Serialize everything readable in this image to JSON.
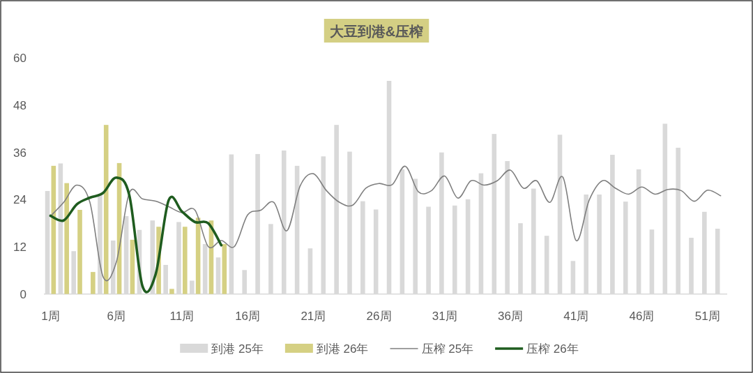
{
  "chart_data": {
    "type": "bar",
    "title": "大豆到港&压榨",
    "categories": [
      "1周",
      null,
      null,
      null,
      null,
      "6周",
      null,
      null,
      null,
      null,
      "11周",
      null,
      null,
      null,
      null,
      "16周",
      null,
      null,
      null,
      null,
      "21周",
      null,
      null,
      null,
      null,
      "26周",
      null,
      null,
      null,
      null,
      "31周",
      null,
      null,
      null,
      null,
      "36周",
      null,
      null,
      null,
      null,
      "41周",
      null,
      null,
      null,
      null,
      "46周",
      null,
      null,
      null,
      null,
      "51周",
      null
    ],
    "series": [
      {
        "name": "到港 25年",
        "color": "#d9d9d9",
        "values": [
          26.2,
          33.2,
          10.9,
          null,
          25.4,
          13.6,
          19.8,
          16.3,
          18.7,
          7.4,
          18.3,
          3.4,
          12.7,
          9.3,
          35.5,
          6.1,
          35.6,
          17.8,
          36.5,
          32.6,
          11.6,
          35.0,
          43.0,
          36.2,
          23.6,
          21.5,
          54.2,
          31.7,
          29.3,
          22.2,
          36.0,
          22.5,
          24.1,
          30.7,
          40.7,
          33.8,
          18.0,
          26.8,
          14.8,
          40.5,
          8.4,
          25.3,
          25.3,
          35.4,
          23.5,
          31.7,
          16.4,
          43.3,
          37.2,
          14.3,
          20.9,
          16.6
        ]
      },
      {
        "name": "到港 26年",
        "color": "#d5d083",
        "values": [
          32.6,
          28.2,
          21.4,
          5.6,
          43.0,
          33.3,
          13.8,
          null,
          17.1,
          1.3,
          17.1,
          19.4,
          18.7,
          12.7,
          null,
          null,
          null,
          null,
          null,
          null,
          null,
          null,
          null,
          null,
          null,
          null,
          null,
          null,
          null,
          null,
          null,
          null,
          null,
          null,
          null,
          null,
          null,
          null,
          null,
          null,
          null,
          null,
          null,
          null,
          null,
          null,
          null,
          null,
          null,
          null,
          null,
          null
        ]
      },
      {
        "name": "压榨 25年",
        "type": "line",
        "color": "#7f7f7f",
        "values": [
          19.8,
          23.3,
          27.7,
          23.3,
          4.4,
          8.0,
          25.7,
          24.2,
          23.6,
          22.2,
          20.7,
          21.3,
          12.1,
          13.6,
          12.1,
          20.1,
          21.3,
          23.3,
          16.1,
          27.5,
          30.6,
          26.3,
          23.3,
          22.6,
          26.9,
          28.1,
          27.8,
          32.5,
          26.0,
          26.3,
          30.0,
          24.4,
          28.8,
          27.7,
          28.8,
          31.5,
          26.9,
          28.8,
          23.3,
          29.7,
          13.6,
          23.9,
          28.8,
          26.9,
          25.4,
          27.2,
          25.4,
          26.6,
          26.3,
          23.6,
          26.4,
          25.0
        ]
      },
      {
        "name": "压榨 26年",
        "type": "line",
        "color": "#1f5c1f",
        "values": [
          19.9,
          18.7,
          22.8,
          24.5,
          25.7,
          29.6,
          25.1,
          2.0,
          5.0,
          23.9,
          21.0,
          18.3,
          18.0,
          12.4,
          null,
          null,
          null,
          null,
          null,
          null,
          null,
          null,
          null,
          null,
          null,
          null,
          null,
          null,
          null,
          null,
          null,
          null,
          null,
          null,
          null,
          null,
          null,
          null,
          null,
          null,
          null,
          null,
          null,
          null,
          null,
          null,
          null,
          null,
          null,
          null,
          null,
          null
        ]
      }
    ],
    "ylim": [
      0,
      60
    ],
    "yticks": [
      0,
      12,
      24,
      36,
      48,
      60
    ],
    "legend": "bottom",
    "line_style": "solid"
  }
}
